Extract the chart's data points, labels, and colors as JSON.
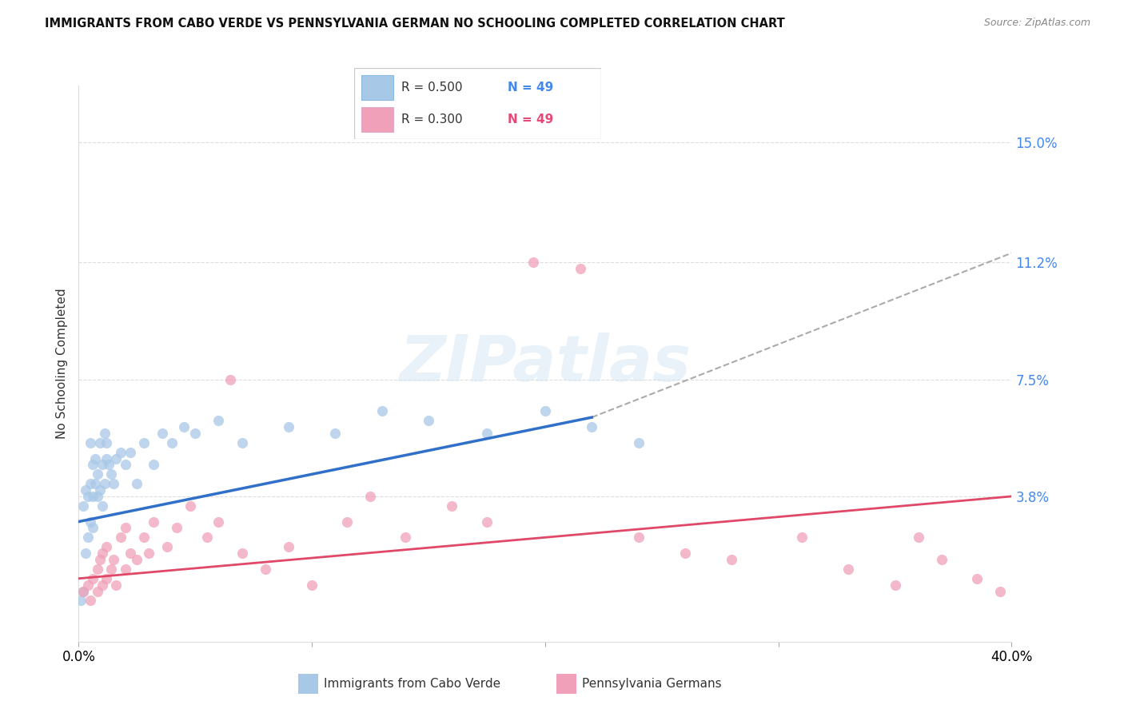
{
  "title": "IMMIGRANTS FROM CABO VERDE VS PENNSYLVANIA GERMAN NO SCHOOLING COMPLETED CORRELATION CHART",
  "source": "Source: ZipAtlas.com",
  "ylabel": "No Schooling Completed",
  "blue_label": "Immigrants from Cabo Verde",
  "pink_label": "Pennsylvania Germans",
  "blue_R": "R = 0.500",
  "blue_N": "N = 49",
  "pink_R": "R = 0.300",
  "pink_N": "N = 49",
  "blue_color": "#a8c8e8",
  "pink_color": "#f0a0b8",
  "blue_line_color": "#3070c8",
  "pink_line_color": "#e04868",
  "dashed_line_color": "#aaaaaa",
  "right_label_color": "#4488ee",
  "xlim": [
    0.0,
    0.4
  ],
  "ylim": [
    -0.008,
    0.168
  ],
  "ytick_values": [
    0.038,
    0.075,
    0.112,
    0.15
  ],
  "ytick_labels": [
    "3.8%",
    "7.5%",
    "11.2%",
    "15.0%"
  ],
  "watermark_text": "ZIPatlas",
  "blue_scatter_x": [
    0.001,
    0.002,
    0.002,
    0.003,
    0.003,
    0.004,
    0.004,
    0.005,
    0.005,
    0.005,
    0.006,
    0.006,
    0.006,
    0.007,
    0.007,
    0.008,
    0.008,
    0.009,
    0.009,
    0.01,
    0.01,
    0.011,
    0.011,
    0.012,
    0.012,
    0.013,
    0.014,
    0.015,
    0.016,
    0.018,
    0.02,
    0.022,
    0.025,
    0.028,
    0.032,
    0.036,
    0.04,
    0.045,
    0.05,
    0.06,
    0.07,
    0.09,
    0.11,
    0.13,
    0.15,
    0.175,
    0.2,
    0.22,
    0.24
  ],
  "blue_scatter_y": [
    0.005,
    0.008,
    0.035,
    0.02,
    0.04,
    0.025,
    0.038,
    0.03,
    0.042,
    0.055,
    0.028,
    0.038,
    0.048,
    0.042,
    0.05,
    0.038,
    0.045,
    0.04,
    0.055,
    0.035,
    0.048,
    0.042,
    0.058,
    0.05,
    0.055,
    0.048,
    0.045,
    0.042,
    0.05,
    0.052,
    0.048,
    0.052,
    0.042,
    0.055,
    0.048,
    0.058,
    0.055,
    0.06,
    0.058,
    0.062,
    0.055,
    0.06,
    0.058,
    0.065,
    0.062,
    0.058,
    0.065,
    0.06,
    0.055
  ],
  "pink_scatter_x": [
    0.002,
    0.004,
    0.005,
    0.006,
    0.008,
    0.008,
    0.009,
    0.01,
    0.01,
    0.012,
    0.012,
    0.014,
    0.015,
    0.016,
    0.018,
    0.02,
    0.02,
    0.022,
    0.025,
    0.028,
    0.03,
    0.032,
    0.038,
    0.042,
    0.048,
    0.055,
    0.06,
    0.065,
    0.07,
    0.08,
    0.09,
    0.1,
    0.115,
    0.125,
    0.14,
    0.16,
    0.175,
    0.195,
    0.215,
    0.24,
    0.26,
    0.28,
    0.31,
    0.33,
    0.35,
    0.36,
    0.37,
    0.385,
    0.395
  ],
  "pink_scatter_y": [
    0.008,
    0.01,
    0.005,
    0.012,
    0.015,
    0.008,
    0.018,
    0.01,
    0.02,
    0.012,
    0.022,
    0.015,
    0.018,
    0.01,
    0.025,
    0.015,
    0.028,
    0.02,
    0.018,
    0.025,
    0.02,
    0.03,
    0.022,
    0.028,
    0.035,
    0.025,
    0.03,
    0.075,
    0.02,
    0.015,
    0.022,
    0.01,
    0.03,
    0.038,
    0.025,
    0.035,
    0.03,
    0.112,
    0.11,
    0.025,
    0.02,
    0.018,
    0.025,
    0.015,
    0.01,
    0.025,
    0.018,
    0.012,
    0.008
  ],
  "blue_line_x_start": 0.0,
  "blue_line_x_end": 0.22,
  "blue_line_y_start": 0.03,
  "blue_line_y_end": 0.063,
  "pink_line_x_start": 0.0,
  "pink_line_x_end": 0.4,
  "pink_line_y_start": 0.012,
  "pink_line_y_end": 0.038,
  "dashed_line_x_start": 0.22,
  "dashed_line_x_end": 0.4,
  "dashed_line_y_start": 0.063,
  "dashed_line_y_end": 0.115
}
